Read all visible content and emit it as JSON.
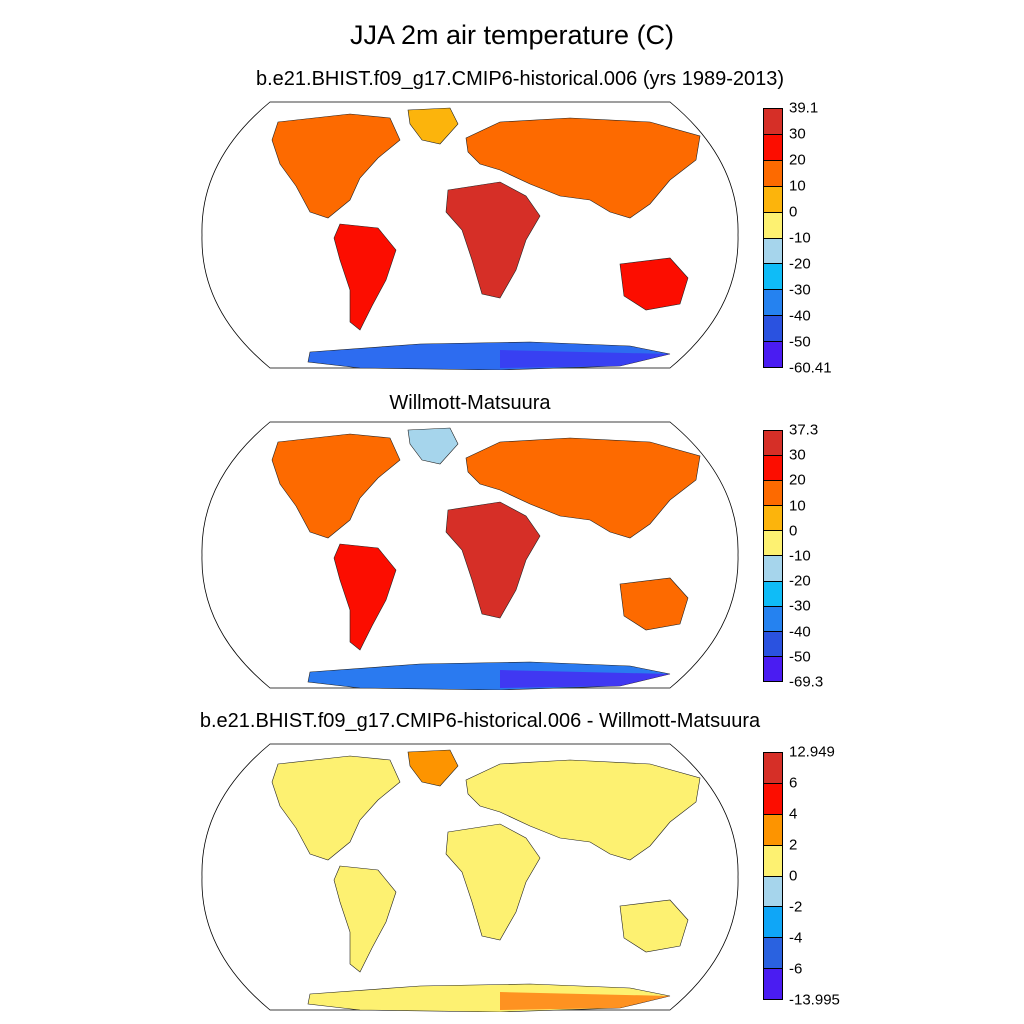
{
  "title": "JJA 2m air temperature (C)",
  "panels": [
    {
      "subtitle": "b.e21.BHIST.f09_g17.CMIP6-historical.006 (yrs 1989-2013)",
      "colorbar": {
        "labels": [
          "39.1",
          "30",
          "20",
          "10",
          "0",
          "-10",
          "-20",
          "-30",
          "-40",
          "-50",
          "-60.41"
        ],
        "colors": [
          "#d62f27",
          "#fc0d00",
          "#fd6a00",
          "#fcb40c",
          "#fdf171",
          "#a6d5ec",
          "#0fbcf7",
          "#2582f0",
          "#2a52e0",
          "#4a1cf2"
        ]
      },
      "antarctica_color": "#2d6cf0",
      "antarctica_edge_color": "#3d2ef2"
    },
    {
      "subtitle": "Willmott-Matsuura",
      "colorbar": {
        "labels": [
          "37.3",
          "30",
          "20",
          "10",
          "0",
          "-10",
          "-20",
          "-30",
          "-40",
          "-50",
          "-69.3"
        ],
        "colors": [
          "#d62f27",
          "#fc0d00",
          "#fd6a00",
          "#fcb40c",
          "#fdf171",
          "#a6d5ec",
          "#0fbcf7",
          "#2582f0",
          "#2a52e0",
          "#4a1cf2"
        ]
      },
      "antarctica_color": "#2a7af0",
      "antarctica_edge_color": "#4a1cf2"
    },
    {
      "subtitle": "b.e21.BHIST.f09_g17.CMIP6-historical.006 - Willmott-Matsuura",
      "colorbar": {
        "labels": [
          "12.949",
          "6",
          "4",
          "2",
          "0",
          "-2",
          "-4",
          "-6",
          "-13.995"
        ],
        "colors": [
          "#d62f27",
          "#fc0d00",
          "#fd9400",
          "#fdf171",
          "#a6d5ec",
          "#0fa6f7",
          "#2a62e0",
          "#4a1cf2"
        ]
      },
      "antarctica_color": "#fdf171",
      "antarctica_edge_color": "#fd6a00"
    }
  ]
}
